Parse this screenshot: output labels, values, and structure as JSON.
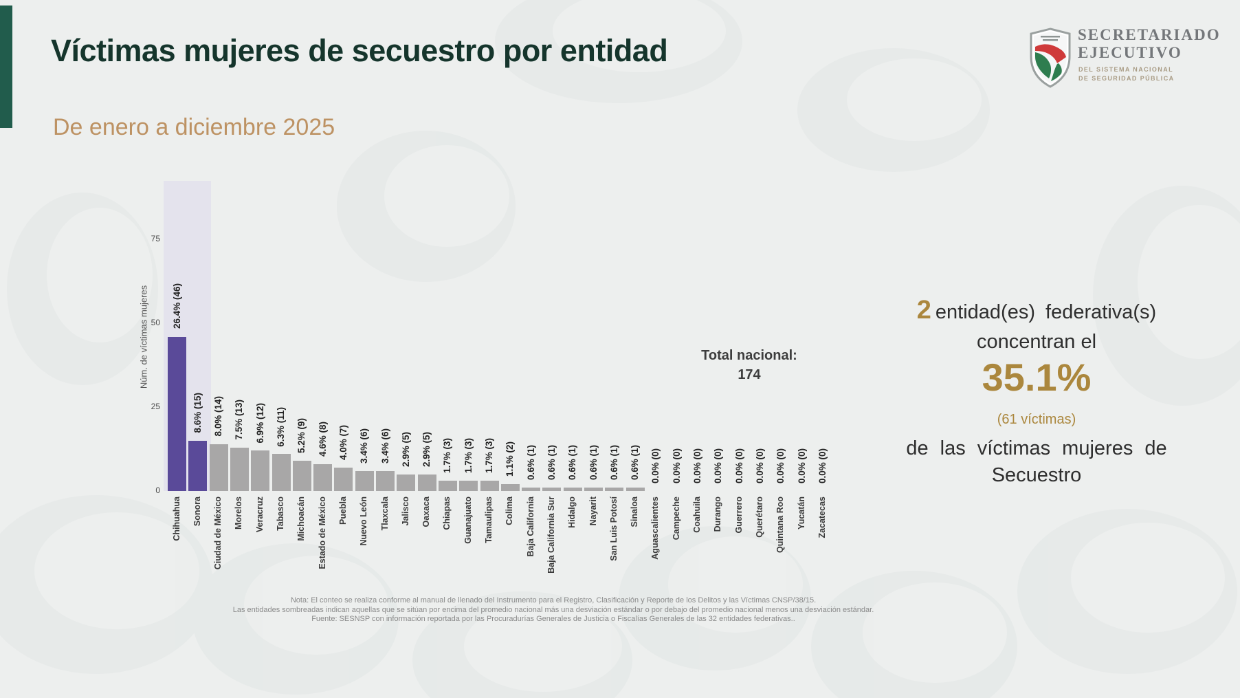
{
  "header": {
    "title": "Víctimas mujeres de secuestro por entidad",
    "subtitle": "De enero a diciembre 2025"
  },
  "logo": {
    "org_line1": "SECRETARIADO",
    "org_line2": "EJECUTIVO",
    "sub_line1": "DEL SISTEMA NACIONAL",
    "sub_line2": "DE SEGURIDAD PÚBLICA"
  },
  "chart_data": {
    "type": "bar",
    "title": "",
    "xlabel": "",
    "ylabel": "Núm. de víctimas mujeres",
    "yticks": [
      0,
      25,
      50,
      75
    ],
    "ylim": [
      0,
      92
    ],
    "grid": false,
    "legend_position": "none",
    "categories": [
      "Chihuahua",
      "Sonora",
      "Ciudad de México",
      "Morelos",
      "Veracruz",
      "Tabasco",
      "Michoacán",
      "Estado de México",
      "Puebla",
      "Nuevo León",
      "Tlaxcala",
      "Jalisco",
      "Oaxaca",
      "Chiapas",
      "Guanajuato",
      "Tamaulipas",
      "Colima",
      "Baja California",
      "Baja California Sur",
      "Hidalgo",
      "Nayarit",
      "San Luis Potosí",
      "Sinaloa",
      "Aguascalientes",
      "Campeche",
      "Coahuila",
      "Durango",
      "Guerrero",
      "Querétaro",
      "Quintana Roo",
      "Yucatán",
      "Zacatecas"
    ],
    "values": [
      46,
      15,
      14,
      13,
      12,
      11,
      9,
      8,
      7,
      6,
      6,
      5,
      5,
      3,
      3,
      3,
      2,
      1,
      1,
      1,
      1,
      1,
      1,
      0,
      0,
      0,
      0,
      0,
      0,
      0,
      0,
      0
    ],
    "bar_labels": [
      "26.4% (46)",
      "8.6% (15)",
      "8.0% (14)",
      "7.5% (13)",
      "6.9% (12)",
      "6.3% (11)",
      "5.2% (9)",
      "4.6% (8)",
      "4.0% (7)",
      "3.4% (6)",
      "3.4% (6)",
      "2.9% (5)",
      "2.9% (5)",
      "1.7% (3)",
      "1.7% (3)",
      "1.7% (3)",
      "1.1% (2)",
      "0.6% (1)",
      "0.6% (1)",
      "0.6% (1)",
      "0.6% (1)",
      "0.6% (1)",
      "0.6% (1)",
      "0.0% (0)",
      "0.0% (0)",
      "0.0% (0)",
      "0.0% (0)",
      "0.0% (0)",
      "0.0% (0)",
      "0.0% (0)",
      "0.0% (0)",
      "0.0% (0)"
    ],
    "highlighted_categories": [
      "Chihuahua",
      "Sonora"
    ],
    "highlight_color": "#5a4a99",
    "bar_color": "#a8a7a7",
    "band_color": "#e4e3ed"
  },
  "total": {
    "label": "Total nacional:",
    "value": "174"
  },
  "callout": {
    "count": "2",
    "entities_text": "entidad(es) federativa(s)",
    "line2": "concentran el",
    "percentage": "35.1%",
    "victims": "(61 víctimas)",
    "line4": "de las víctimas mujeres de",
    "line5": "Secuestro"
  },
  "notes": {
    "line1": "Nota: El conteo se realiza conforme al manual de llenado del Instrumento para el Registro, Clasificación y Reporte de los Delitos y las Víctimas CNSP/38/15.",
    "line2": "Las entidades sombreadas indican aquellas que se sitúan por encima del promedio nacional más una desviación estándar o por debajo del promedio nacional menos una desviación estándar.",
    "line3": "Fuente: SESNSP con información reportada por las Procuradurías Generales de Justicia o Fiscalías Generales de las 32 entidades federativas.."
  },
  "colors": {
    "title_green": "#15352c",
    "subtitle_gold": "#bd9263",
    "sidebar_green": "#215c4c",
    "accent_gold": "#ab873d",
    "note_gray": "#8a8a8a"
  }
}
